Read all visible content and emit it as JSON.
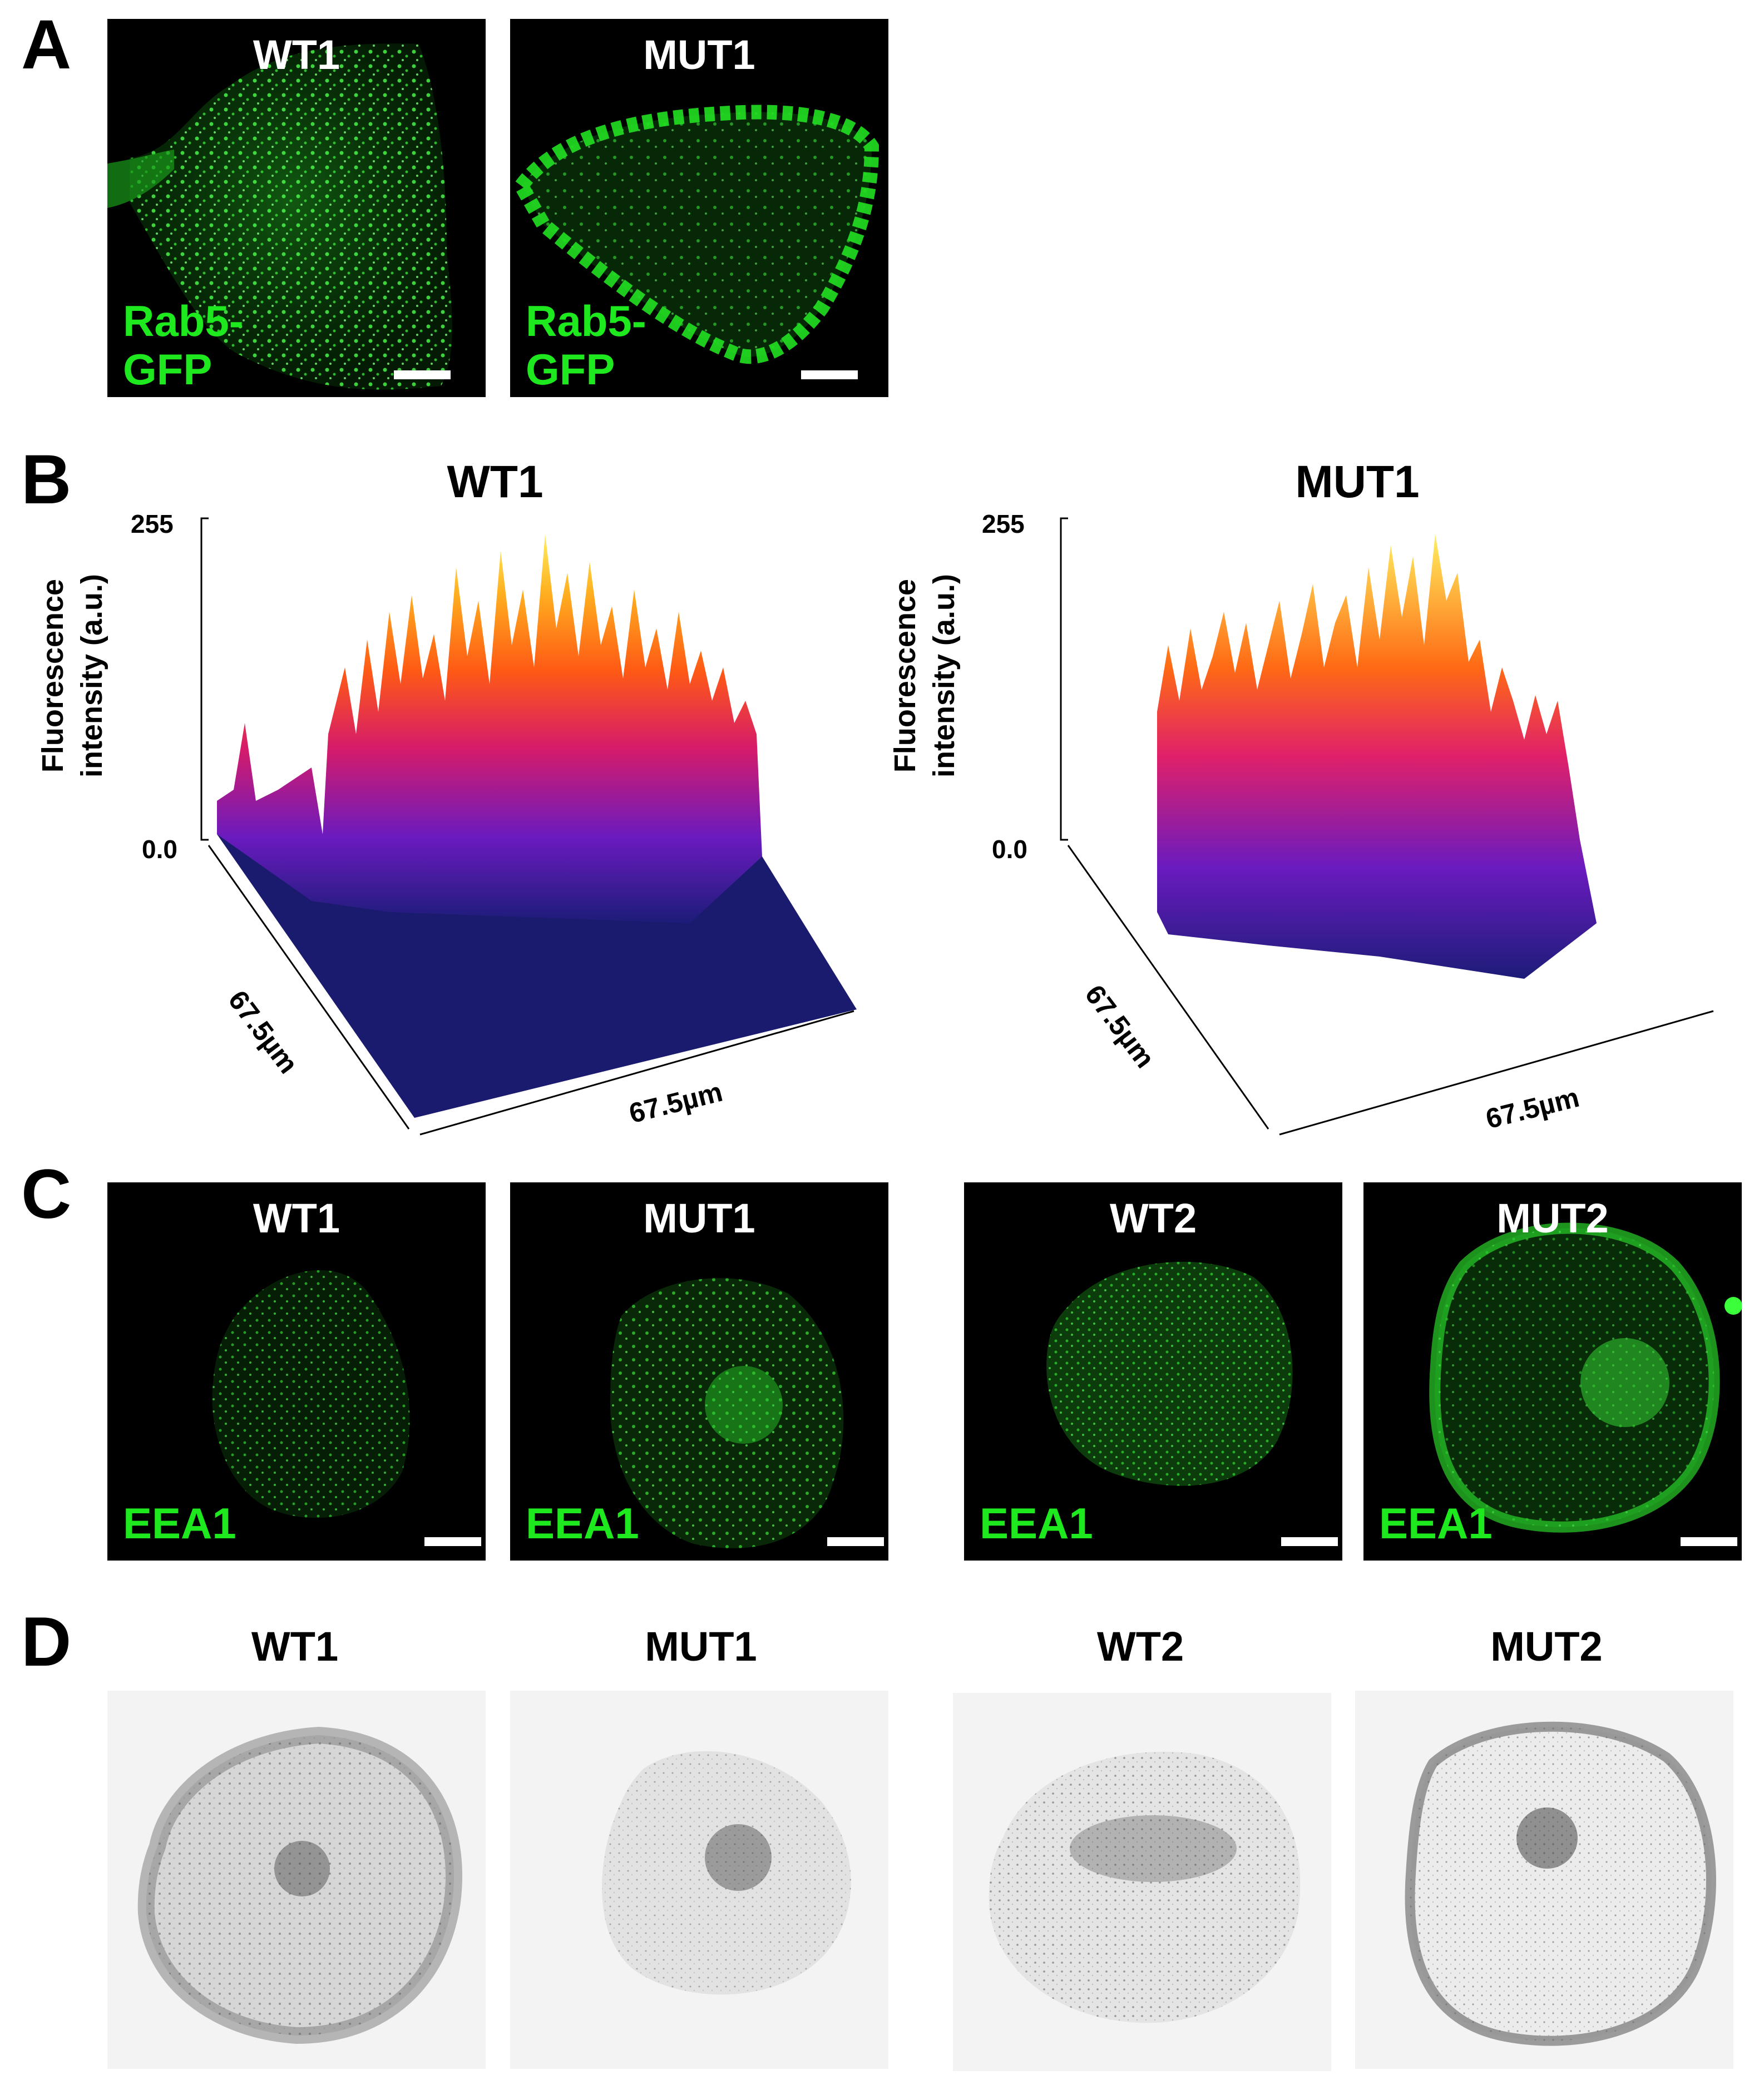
{
  "panels": {
    "a": {
      "letter": "A",
      "images": [
        {
          "title": "WT1",
          "marker_line1": "Rab5-",
          "marker_line2": "GFP"
        },
        {
          "title": "MUT1",
          "marker_line1": "Rab5-",
          "marker_line2": "GFP"
        }
      ]
    },
    "b": {
      "letter": "B",
      "plots": [
        {
          "title": "WT1",
          "y_max": "255",
          "y_min": "0.0",
          "ylabel_line1": "Fluorescence",
          "ylabel_line2": "intensity (a.u.)",
          "depth_label": "67.5µm",
          "width_label": "67.5µm"
        },
        {
          "title": "MUT1",
          "y_max": "255",
          "y_min": "0.0",
          "ylabel_line1": "Fluorescence",
          "ylabel_line2": "intensity (a.u.)",
          "depth_label": "67.5µm",
          "width_label": "67.5µm"
        }
      ]
    },
    "c": {
      "letter": "C",
      "images": [
        {
          "title": "WT1",
          "marker": "EEA1"
        },
        {
          "title": "MUT1",
          "marker": "EEA1"
        },
        {
          "title": "WT2",
          "marker": "EEA1"
        },
        {
          "title": "MUT2",
          "marker": "EEA1"
        }
      ]
    },
    "d": {
      "letter": "D",
      "images": [
        {
          "title": "WT1"
        },
        {
          "title": "MUT1"
        },
        {
          "title": "WT2"
        },
        {
          "title": "MUT2"
        }
      ]
    }
  },
  "colors": {
    "fluor_green": "#1ee81e",
    "surface_base": "#1a1a6e",
    "surface_low": "#6a1bbf",
    "surface_mid": "#ff3a1a",
    "surface_high": "#ffe640"
  }
}
